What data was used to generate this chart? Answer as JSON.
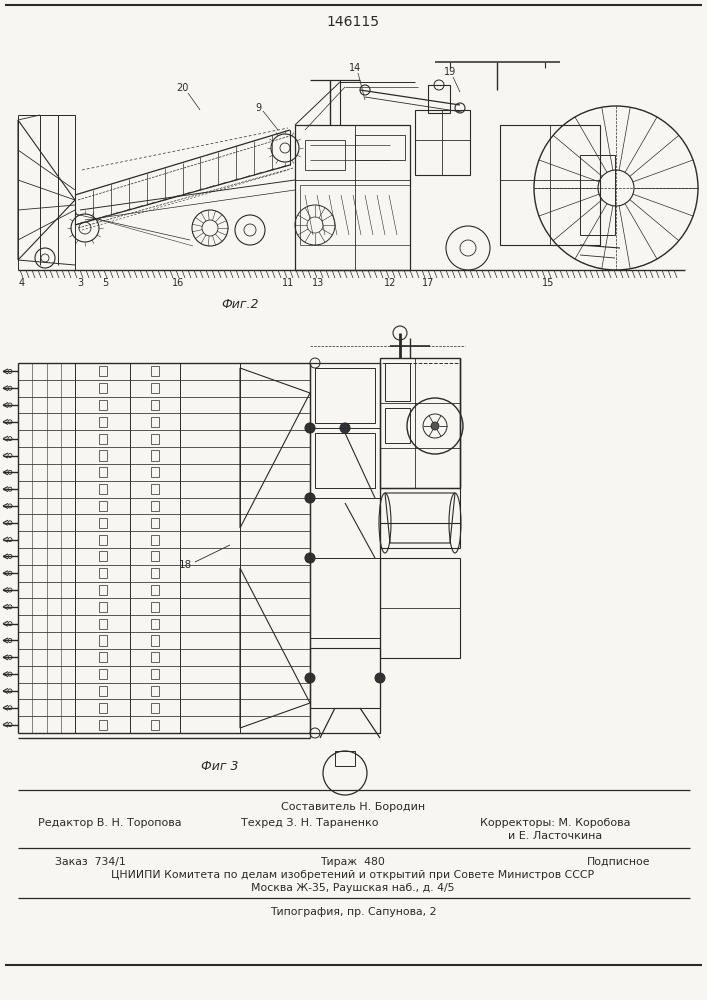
{
  "title": "146115",
  "fig2_label": "Фиг.2",
  "fig3_label": "Фиг 3",
  "label_18": "18",
  "staff_line1": "Составитель Н. Бородин",
  "staff_line2_col1": "Редактор В. Н. Торопова",
  "staff_line2_col2": "Техред З. Н. Тараненко",
  "staff_line2_col3": "Корректоры: М. Коробова",
  "staff_line2_col3b": "и Е. Ласточкина",
  "info_line1_col1": "Заказ  734/1",
  "info_line1_col2": "Тираж  480",
  "info_line1_col3": "Подписное",
  "info_line2": "ЦНИИПИ Комитета по делам изобретений и открытий при Совете Министров СССР",
  "info_line3": "Москва Ж-35, Раушская наб., д. 4/5",
  "info_line4": "Типография, пр. Сапунова, 2",
  "bg_color": "#f0ede8",
  "line_color": "#2a2a2a",
  "paper_color": "#f8f6f2"
}
